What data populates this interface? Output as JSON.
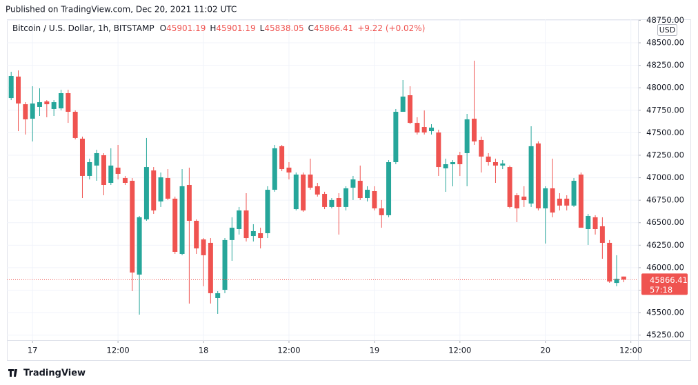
{
  "published": "Published on TradingView.com, Dec 20, 2021 11:02 UTC",
  "footer": "TradingView",
  "chart_data": {
    "type": "candlestick",
    "title": "Bitcoin / U.S. Dollar, 1h, BITSTAMP",
    "ohlc_letters": [
      "O",
      "H",
      "L",
      "C"
    ],
    "change": "+9.22 (+0.02%)",
    "currency": "USD",
    "countdown": "57:18",
    "up_color": "#26a69a",
    "down_color": "#ef5350",
    "grid": true,
    "open": [
      47886,
      48124,
      47817,
      47656,
      47787,
      47848,
      47764,
      47771,
      47940,
      47733,
      47434,
      47020,
      47135,
      47250,
      46943,
      47112,
      46997,
      46966,
      45923,
      46537,
      47081,
      46736,
      46997,
      46767,
      46153,
      46920,
      46521,
      46314,
      46276,
      45662,
      45754,
      46307,
      46429,
      46636,
      46352,
      46383,
      46383,
      46866,
      47350,
      47112,
      46651,
      47035,
      47035,
      46905,
      46820,
      46675,
      46774,
      46675,
      46889,
      46966,
      46774,
      46851,
      46659,
      46583,
      47173,
      47733,
      47917,
      47610,
      47564,
      47518,
      47503,
      47104,
      47150,
      47250,
      47273,
      47656,
      47419,
      47235,
      47173,
      47135,
      47119,
      46805,
      46790,
      46713,
      47381,
      46659,
      46882,
      46767,
      46767,
      46690,
      47035,
      46429,
      46560,
      46460,
      46276,
      45830,
      45901.19
    ],
    "high": [
      48178,
      48193,
      47840,
      48017,
      47994,
      47863,
      47863,
      47978,
      47978,
      47748,
      47457,
      47212,
      47311,
      47273,
      47327,
      47365,
      47020,
      46997,
      46575,
      47442,
      47119,
      47058,
      47096,
      46790,
      47096,
      47112,
      46537,
      46329,
      46329,
      45739,
      46329,
      46560,
      46675,
      46828,
      46483,
      46444,
      46905,
      47365,
      47365,
      47173,
      47058,
      47058,
      47212,
      46943,
      46844,
      46774,
      46828,
      46905,
      47020,
      47135,
      46905,
      46905,
      46752,
      47196,
      47764,
      48086,
      48017,
      47672,
      47748,
      47595,
      47534,
      47212,
      47196,
      47288,
      47710,
      48301,
      47457,
      47273,
      47212,
      47196,
      47135,
      46828,
      46905,
      47572,
      47404,
      46905,
      47212,
      46828,
      46805,
      46997,
      47058,
      46598,
      46583,
      46560,
      46307,
      46138,
      45901.19
    ],
    "low": [
      47863,
      47518,
      47480,
      47403,
      47687,
      47672,
      47687,
      47748,
      47610,
      47426,
      46774,
      46981,
      46966,
      46805,
      46920,
      46981,
      46920,
      45739,
      45478,
      46521,
      46598,
      46675,
      46752,
      46153,
      46138,
      45601,
      46153,
      45793,
      45601,
      45486,
      45716,
      46076,
      46368,
      46291,
      46291,
      46214,
      46329,
      46844,
      47073,
      46981,
      46636,
      46621,
      46867,
      46790,
      46651,
      46659,
      46368,
      46636,
      46752,
      46752,
      46736,
      46636,
      46444,
      46560,
      47150,
      47733,
      47595,
      47480,
      47480,
      47480,
      47020,
      46843,
      46904,
      47020,
      46905,
      47365,
      47058,
      47135,
      46943,
      47096,
      46659,
      46506,
      46675,
      46675,
      46636,
      46268,
      46560,
      46636,
      46636,
      46675,
      46444,
      46253,
      46368,
      46099,
      45831,
      45793,
      45838.05
    ],
    "close": [
      48132,
      47825,
      47649,
      47825,
      47840,
      47817,
      47840,
      47940,
      47733,
      47442,
      47020,
      47173,
      47273,
      46920,
      47135,
      47043,
      46943,
      45946,
      46560,
      47119,
      46636,
      47004,
      46767,
      46176,
      46905,
      46521,
      46214,
      46138,
      45716,
      45716,
      46307,
      46444,
      46636,
      46329,
      46406,
      46329,
      46866,
      47327,
      47096,
      47058,
      47035,
      46636,
      46889,
      46813,
      46675,
      46752,
      46675,
      46882,
      46981,
      46774,
      46866,
      46659,
      46583,
      47173,
      47733,
      47902,
      47610,
      47503,
      47503,
      47557,
      47119,
      47150,
      47173,
      47150,
      47649,
      47403,
      47235,
      47173,
      47135,
      47158,
      46675,
      46659,
      46751,
      47350,
      46659,
      46882,
      46613,
      46690,
      46690,
      46966,
      46444,
      46575,
      46429,
      46276,
      45846,
      45877,
      45866.41
    ],
    "xlim": [
      -0.6,
      88
    ],
    "xticks": [
      {
        "value": 3,
        "label": "17"
      },
      {
        "value": 15,
        "label": "12:00"
      },
      {
        "value": 27,
        "label": "18"
      },
      {
        "value": 39,
        "label": "12:00"
      },
      {
        "value": 51,
        "label": "19"
      },
      {
        "value": 63,
        "label": "12:00"
      },
      {
        "value": 75,
        "label": "20"
      },
      {
        "value": 87,
        "label": "12:00"
      }
    ],
    "ylim": [
      45194,
      48761
    ],
    "yticks": [
      {
        "value": 45250,
        "label": "45250.00"
      },
      {
        "value": 45500,
        "label": "45500.00"
      },
      {
        "value": 45750,
        "label": "45750.00"
      },
      {
        "value": 46000,
        "label": "46000.00"
      },
      {
        "value": 46250,
        "label": "46250.00"
      },
      {
        "value": 46500,
        "label": "46500.00"
      },
      {
        "value": 46750,
        "label": "46750.00"
      },
      {
        "value": 47000,
        "label": "47000.00"
      },
      {
        "value": 47250,
        "label": "47250.00"
      },
      {
        "value": 47500,
        "label": "47500.00"
      },
      {
        "value": 47750,
        "label": "47750.00"
      },
      {
        "value": 48000,
        "label": "48000.00"
      },
      {
        "value": 48250,
        "label": "48250.00"
      },
      {
        "value": 48500,
        "label": "48500.00"
      },
      {
        "value": 48750,
        "label": "48750.00"
      }
    ]
  }
}
